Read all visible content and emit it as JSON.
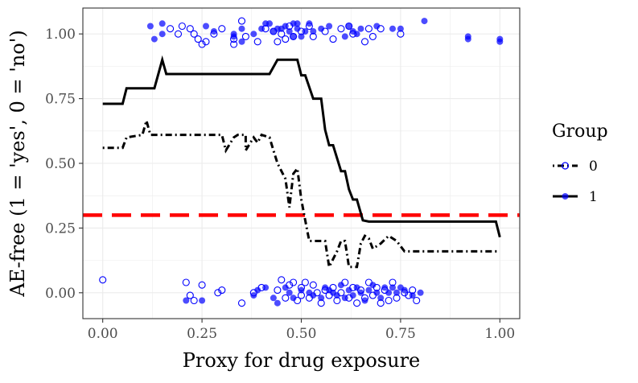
{
  "chart_data": {
    "type": "scatter",
    "title": "",
    "xlabel": "Proxy for drug exposure",
    "ylabel": "AE-free (1 = 'yes', 0 = 'no')",
    "xlim": [
      -0.05,
      1.05
    ],
    "ylim": [
      -0.1,
      1.1
    ],
    "x_ticks": [
      0,
      0.25,
      0.5,
      0.75,
      1
    ],
    "x_tick_labels": [
      "0.00",
      "0.25",
      "0.50",
      "0.75",
      "1.00"
    ],
    "y_ticks": [
      0,
      0.25,
      0.5,
      0.75,
      1
    ],
    "y_tick_labels": [
      "0.00",
      "0.25",
      "0.50",
      "0.75",
      "1.00"
    ],
    "grid": true,
    "legend": {
      "title": "Group",
      "position": "right",
      "entries": [
        {
          "label": "0",
          "line": "dotdash",
          "marker": "open-circle"
        },
        {
          "label": "1",
          "line": "solid",
          "marker": "filled-circle"
        }
      ]
    },
    "colors": {
      "points": "#0000ff",
      "threshold": "#ff0000",
      "lines": "#000000",
      "grid": "#ebebeb"
    },
    "reference_line": {
      "y": 0.3,
      "style": "dashed",
      "color": "#ff0000"
    },
    "series": [
      {
        "name": "1",
        "kind": "line",
        "style": "solid",
        "points": [
          [
            0,
            0.73
          ],
          [
            0.05,
            0.73
          ],
          [
            0.06,
            0.79
          ],
          [
            0.13,
            0.79
          ],
          [
            0.15,
            0.9
          ],
          [
            0.16,
            0.845
          ],
          [
            0.42,
            0.845
          ],
          [
            0.44,
            0.9
          ],
          [
            0.49,
            0.9
          ],
          [
            0.5,
            0.84
          ],
          [
            0.51,
            0.84
          ],
          [
            0.53,
            0.75
          ],
          [
            0.55,
            0.75
          ],
          [
            0.56,
            0.63
          ],
          [
            0.57,
            0.57
          ],
          [
            0.58,
            0.57
          ],
          [
            0.6,
            0.47
          ],
          [
            0.61,
            0.47
          ],
          [
            0.62,
            0.4
          ],
          [
            0.63,
            0.36
          ],
          [
            0.64,
            0.36
          ],
          [
            0.655,
            0.28
          ],
          [
            0.67,
            0.275
          ],
          [
            0.99,
            0.275
          ],
          [
            1.0,
            0.215
          ]
        ]
      },
      {
        "name": "0",
        "kind": "line",
        "style": "dotdash",
        "points": [
          [
            0,
            0.56
          ],
          [
            0.05,
            0.56
          ],
          [
            0.06,
            0.6
          ],
          [
            0.1,
            0.61
          ],
          [
            0.11,
            0.665
          ],
          [
            0.12,
            0.61
          ],
          [
            0.3,
            0.61
          ],
          [
            0.31,
            0.55
          ],
          [
            0.33,
            0.6
          ],
          [
            0.34,
            0.61
          ],
          [
            0.36,
            0.61
          ],
          [
            0.36,
            0.55
          ],
          [
            0.38,
            0.6
          ],
          [
            0.39,
            0.58
          ],
          [
            0.4,
            0.61
          ],
          [
            0.42,
            0.6
          ],
          [
            0.43,
            0.55
          ],
          [
            0.44,
            0.5
          ],
          [
            0.46,
            0.44
          ],
          [
            0.47,
            0.33
          ],
          [
            0.48,
            0.46
          ],
          [
            0.49,
            0.48
          ],
          [
            0.5,
            0.36
          ],
          [
            0.51,
            0.28
          ],
          [
            0.52,
            0.2
          ],
          [
            0.56,
            0.2
          ],
          [
            0.57,
            0.1
          ],
          [
            0.59,
            0.16
          ],
          [
            0.6,
            0.2
          ],
          [
            0.61,
            0.2
          ],
          [
            0.62,
            0.1
          ],
          [
            0.64,
            0.1
          ],
          [
            0.65,
            0.19
          ],
          [
            0.66,
            0.22
          ],
          [
            0.67,
            0.21
          ],
          [
            0.68,
            0.17
          ],
          [
            0.7,
            0.19
          ],
          [
            0.72,
            0.22
          ],
          [
            0.74,
            0.2
          ],
          [
            0.76,
            0.16
          ],
          [
            1.0,
            0.16
          ]
        ]
      },
      {
        "name": "1",
        "kind": "points",
        "marker": "filled",
        "points": [
          [
            0.12,
            1.03
          ],
          [
            0.13,
            0.98
          ],
          [
            0.15,
            1.04
          ],
          [
            0.15,
            1.0
          ],
          [
            0.26,
            1.03
          ],
          [
            0.28,
            1.01
          ],
          [
            0.33,
            0.99
          ],
          [
            0.33,
            1.0
          ],
          [
            0.35,
            1.02
          ],
          [
            0.35,
            0.97
          ],
          [
            0.38,
            1.0
          ],
          [
            0.4,
            1.02
          ],
          [
            0.41,
            1.04
          ],
          [
            0.42,
            1.04
          ],
          [
            0.43,
            1.01
          ],
          [
            0.44,
            1.02
          ],
          [
            0.45,
            1.02
          ],
          [
            0.46,
            1.03
          ],
          [
            0.47,
            1.01
          ],
          [
            0.48,
            0.99
          ],
          [
            0.48,
            1.04
          ],
          [
            0.49,
            1.02
          ],
          [
            0.49,
            1.04
          ],
          [
            0.5,
            0.99
          ],
          [
            0.51,
            1.01
          ],
          [
            0.52,
            1.04
          ],
          [
            0.53,
            1.01
          ],
          [
            0.55,
            1.02
          ],
          [
            0.57,
            1.03
          ],
          [
            0.61,
            0.99
          ],
          [
            0.62,
            1.03
          ],
          [
            0.63,
            1.01
          ],
          [
            0.64,
            1.0
          ],
          [
            0.65,
            1.02
          ],
          [
            0.69,
            1.03
          ],
          [
            0.73,
            1.02
          ],
          [
            0.75,
            1.02
          ],
          [
            0.81,
            1.05
          ],
          [
            0.92,
            0.99
          ],
          [
            0.92,
            0.98
          ],
          [
            1.0,
            0.98
          ],
          [
            1.0,
            0.97
          ],
          [
            0.21,
            -0.03
          ],
          [
            0.25,
            -0.03
          ],
          [
            0.38,
            -0.01
          ],
          [
            0.39,
            0.01
          ],
          [
            0.41,
            0.02
          ],
          [
            0.43,
            -0.02
          ],
          [
            0.44,
            -0.04
          ],
          [
            0.46,
            0.02
          ],
          [
            0.47,
            0.0
          ],
          [
            0.48,
            -0.02
          ],
          [
            0.5,
            0.01
          ],
          [
            0.52,
            0.0
          ],
          [
            0.53,
            -0.01
          ],
          [
            0.55,
            -0.02
          ],
          [
            0.56,
            0.02
          ],
          [
            0.57,
            0.01
          ],
          [
            0.58,
            0.0
          ],
          [
            0.59,
            -0.01
          ],
          [
            0.6,
            0.03
          ],
          [
            0.61,
            -0.02
          ],
          [
            0.62,
            0.01
          ],
          [
            0.63,
            -0.01
          ],
          [
            0.64,
            0.02
          ],
          [
            0.65,
            0.0
          ],
          [
            0.66,
            -0.03
          ],
          [
            0.67,
            0.01
          ],
          [
            0.68,
            0.03
          ],
          [
            0.69,
            0.0
          ],
          [
            0.7,
            -0.02
          ],
          [
            0.71,
            0.02
          ],
          [
            0.72,
            0.0
          ],
          [
            0.73,
            0.02
          ],
          [
            0.74,
            0.0
          ],
          [
            0.75,
            0.02
          ],
          [
            0.76,
            0.01
          ],
          [
            0.78,
            -0.01
          ],
          [
            0.8,
            0.0
          ]
        ]
      },
      {
        "name": "0",
        "kind": "points",
        "marker": "open",
        "points": [
          [
            0.17,
            1.02
          ],
          [
            0.19,
            1.0
          ],
          [
            0.2,
            1.03
          ],
          [
            0.22,
            1.02
          ],
          [
            0.23,
            1.0
          ],
          [
            0.24,
            0.98
          ],
          [
            0.25,
            0.96
          ],
          [
            0.26,
            0.97
          ],
          [
            0.28,
            1.0
          ],
          [
            0.3,
            1.02
          ],
          [
            0.33,
            0.96
          ],
          [
            0.33,
            0.98
          ],
          [
            0.35,
            1.05
          ],
          [
            0.36,
            0.99
          ],
          [
            0.39,
            0.97
          ],
          [
            0.41,
            1.02
          ],
          [
            0.43,
            1.01
          ],
          [
            0.44,
            0.97
          ],
          [
            0.45,
            1.0
          ],
          [
            0.46,
            0.98
          ],
          [
            0.47,
            1.03
          ],
          [
            0.48,
            0.99
          ],
          [
            0.5,
            1.01
          ],
          [
            0.52,
            1.03
          ],
          [
            0.53,
            0.99
          ],
          [
            0.56,
            1.01
          ],
          [
            0.58,
            0.98
          ],
          [
            0.6,
            1.02
          ],
          [
            0.62,
            1.03
          ],
          [
            0.63,
            1.0
          ],
          [
            0.66,
            0.97
          ],
          [
            0.67,
            1.02
          ],
          [
            0.68,
            0.99
          ],
          [
            0.7,
            1.02
          ],
          [
            0.75,
            1.0
          ],
          [
            0.0,
            0.05
          ],
          [
            0.21,
            0.04
          ],
          [
            0.22,
            -0.01
          ],
          [
            0.23,
            -0.03
          ],
          [
            0.25,
            0.03
          ],
          [
            0.29,
            0.0
          ],
          [
            0.3,
            0.01
          ],
          [
            0.35,
            -0.04
          ],
          [
            0.38,
            0.0
          ],
          [
            0.4,
            0.02
          ],
          [
            0.44,
            0.01
          ],
          [
            0.45,
            0.05
          ],
          [
            0.46,
            -0.02
          ],
          [
            0.47,
            0.03
          ],
          [
            0.48,
            0.04
          ],
          [
            0.49,
            -0.03
          ],
          [
            0.5,
            0.02
          ],
          [
            0.5,
            -0.01
          ],
          [
            0.51,
            0.04
          ],
          [
            0.52,
            -0.02
          ],
          [
            0.53,
            0.03
          ],
          [
            0.54,
            0.0
          ],
          [
            0.55,
            -0.04
          ],
          [
            0.56,
            0.01
          ],
          [
            0.57,
            -0.01
          ],
          [
            0.58,
            0.02
          ],
          [
            0.59,
            -0.03
          ],
          [
            0.6,
            0.0
          ],
          [
            0.61,
            0.04
          ],
          [
            0.62,
            -0.02
          ],
          [
            0.63,
            0.02
          ],
          [
            0.64,
            -0.04
          ],
          [
            0.65,
            0.01
          ],
          [
            0.66,
            -0.02
          ],
          [
            0.67,
            0.04
          ],
          [
            0.68,
            -0.01
          ],
          [
            0.69,
            0.02
          ],
          [
            0.7,
            -0.04
          ],
          [
            0.71,
            0.01
          ],
          [
            0.72,
            -0.03
          ],
          [
            0.73,
            0.04
          ],
          [
            0.74,
            -0.02
          ],
          [
            0.76,
            0.0
          ],
          [
            0.77,
            -0.01
          ],
          [
            0.78,
            0.01
          ],
          [
            0.79,
            -0.03
          ]
        ]
      }
    ]
  }
}
